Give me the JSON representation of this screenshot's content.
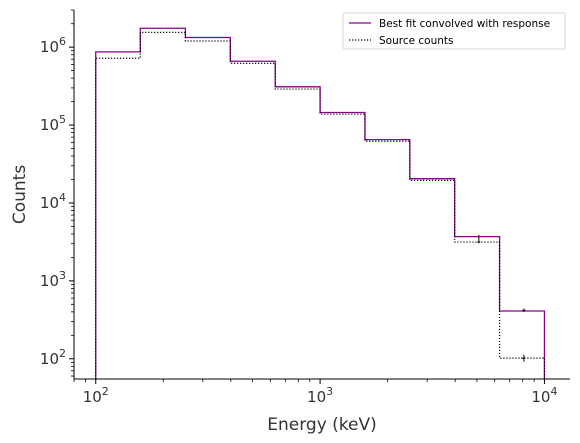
{
  "chart_data": {
    "type": "line",
    "subtype": "step-histogram",
    "xlabel": "Energy (keV)",
    "ylabel": "Counts",
    "xscale": "log",
    "yscale": "log",
    "xlim": [
      80,
      13000
    ],
    "ylim": [
      55,
      3000000
    ],
    "x_tick_labels": [
      {
        "base": "10",
        "exp": "2",
        "value": 100
      },
      {
        "base": "10",
        "exp": "3",
        "value": 1000
      },
      {
        "base": "10",
        "exp": "4",
        "value": 10000
      }
    ],
    "y_tick_labels": [
      {
        "base": "10",
        "exp": "2",
        "value": 100
      },
      {
        "base": "10",
        "exp": "3",
        "value": 1000
      },
      {
        "base": "10",
        "exp": "4",
        "value": 10000
      },
      {
        "base": "10",
        "exp": "5",
        "value": 100000
      },
      {
        "base": "10",
        "exp": "6",
        "value": 1000000
      }
    ],
    "bin_edges": [
      100,
      158,
      251,
      398,
      631,
      1000,
      1585,
      2512,
      3981,
      6310,
      10000
    ],
    "grid": false,
    "legend_position": "top-right",
    "series": [
      {
        "name": "Best fit convolved with response",
        "style": "solid",
        "color": "#8b008b",
        "values": [
          870000,
          1750000,
          1330000,
          660000,
          310000,
          145000,
          65000,
          20500,
          3700,
          410
        ]
      },
      {
        "name": "Source counts",
        "style": "dotted",
        "color": "#000000",
        "values": [
          720000,
          1550000,
          1200000,
          620000,
          290000,
          138000,
          62000,
          19500,
          3150,
          102
        ],
        "errors": [
          {
            "x": 5100,
            "y": 3150,
            "lo": 3050,
            "hi": 3900
          },
          {
            "x": 8100,
            "y": 102,
            "lo": 92,
            "hi": 113
          },
          {
            "x": 8100,
            "y": 420,
            "lo": 400,
            "hi": 440
          }
        ]
      }
    ]
  }
}
